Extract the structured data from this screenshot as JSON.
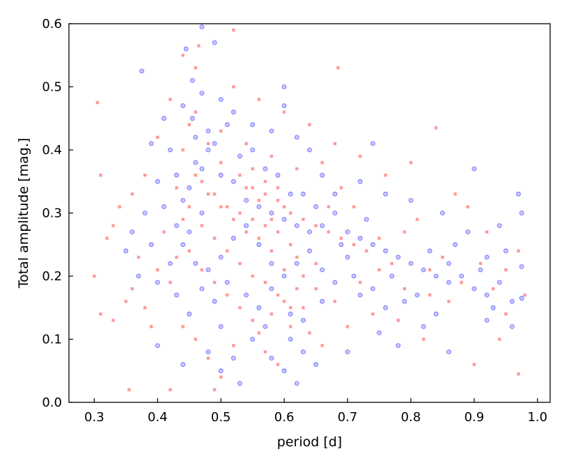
{
  "chart_data": {
    "type": "scatter",
    "title": "",
    "xlabel": "period [d]",
    "ylabel": "Total amplitude [mag.]",
    "xlim": [
      0.26,
      1.02
    ],
    "ylim": [
      0.0,
      0.6
    ],
    "xticks": [
      "0.3",
      "0.4",
      "0.5",
      "0.6",
      "0.7",
      "0.8",
      "0.9",
      "1.0"
    ],
    "yticks": [
      "0.0",
      "0.1",
      "0.2",
      "0.3",
      "0.4",
      "0.5",
      "0.6"
    ],
    "grid": false,
    "legend": "none",
    "series": [
      {
        "marker": "circle",
        "color": "#0000ff",
        "points": [
          [
            0.47,
            0.595
          ],
          [
            0.49,
            0.57
          ],
          [
            0.445,
            0.56
          ],
          [
            0.375,
            0.525
          ],
          [
            0.455,
            0.51
          ],
          [
            0.455,
            0.45
          ],
          [
            0.46,
            0.42
          ],
          [
            0.48,
            0.4
          ],
          [
            0.47,
            0.37
          ],
          [
            0.5,
            0.36
          ],
          [
            0.45,
            0.34
          ],
          [
            0.52,
            0.35
          ],
          [
            0.54,
            0.32
          ],
          [
            0.56,
            0.31
          ],
          [
            0.58,
            0.3
          ],
          [
            0.6,
            0.29
          ],
          [
            0.62,
            0.28
          ],
          [
            0.64,
            0.27
          ],
          [
            0.66,
            0.28
          ],
          [
            0.68,
            0.3
          ],
          [
            0.7,
            0.27
          ],
          [
            0.72,
            0.26
          ],
          [
            0.74,
            0.25
          ],
          [
            0.76,
            0.24
          ],
          [
            0.78,
            0.23
          ],
          [
            0.8,
            0.22
          ],
          [
            0.82,
            0.21
          ],
          [
            0.84,
            0.2
          ],
          [
            0.86,
            0.19
          ],
          [
            0.88,
            0.2
          ],
          [
            0.9,
            0.18
          ],
          [
            0.92,
            0.17
          ],
          [
            0.94,
            0.19
          ],
          [
            0.96,
            0.16
          ],
          [
            0.97,
            0.33
          ],
          [
            0.975,
            0.3
          ],
          [
            0.975,
            0.215
          ],
          [
            0.975,
            0.165
          ],
          [
            0.9,
            0.37
          ],
          [
            0.74,
            0.41
          ],
          [
            0.6,
            0.47
          ],
          [
            0.6,
            0.5
          ],
          [
            0.42,
            0.4
          ],
          [
            0.4,
            0.35
          ],
          [
            0.38,
            0.3
          ],
          [
            0.36,
            0.27
          ],
          [
            0.35,
            0.24
          ],
          [
            0.37,
            0.2
          ],
          [
            0.4,
            0.19
          ],
          [
            0.43,
            0.17
          ],
          [
            0.45,
            0.14
          ],
          [
            0.5,
            0.12
          ],
          [
            0.55,
            0.1
          ],
          [
            0.58,
            0.07
          ],
          [
            0.6,
            0.05
          ],
          [
            0.62,
            0.03
          ],
          [
            0.53,
            0.03
          ],
          [
            0.65,
            0.06
          ],
          [
            0.7,
            0.08
          ],
          [
            0.75,
            0.11
          ],
          [
            0.78,
            0.09
          ],
          [
            0.82,
            0.12
          ],
          [
            0.86,
            0.08
          ],
          [
            0.92,
            0.13
          ],
          [
            0.96,
            0.12
          ],
          [
            0.4,
            0.09
          ],
          [
            0.44,
            0.06
          ],
          [
            0.48,
            0.08
          ],
          [
            0.5,
            0.05
          ],
          [
            0.52,
            0.07
          ],
          [
            0.56,
            0.15
          ],
          [
            0.58,
            0.18
          ],
          [
            0.61,
            0.14
          ],
          [
            0.63,
            0.13
          ],
          [
            0.66,
            0.16
          ],
          [
            0.68,
            0.19
          ],
          [
            0.72,
            0.17
          ],
          [
            0.77,
            0.2
          ],
          [
            0.79,
            0.16
          ],
          [
            0.84,
            0.14
          ],
          [
            0.87,
            0.25
          ],
          [
            0.89,
            0.27
          ],
          [
            0.92,
            0.23
          ],
          [
            0.94,
            0.28
          ],
          [
            0.85,
            0.3
          ],
          [
            0.8,
            0.32
          ],
          [
            0.76,
            0.33
          ],
          [
            0.72,
            0.35
          ],
          [
            0.68,
            0.33
          ],
          [
            0.66,
            0.36
          ],
          [
            0.64,
            0.4
          ],
          [
            0.62,
            0.42
          ],
          [
            0.58,
            0.43
          ],
          [
            0.55,
            0.44
          ],
          [
            0.52,
            0.46
          ],
          [
            0.5,
            0.48
          ],
          [
            0.48,
            0.43
          ],
          [
            0.46,
            0.38
          ],
          [
            0.44,
            0.32
          ],
          [
            0.43,
            0.28
          ],
          [
            0.44,
            0.25
          ],
          [
            0.46,
            0.22
          ],
          [
            0.48,
            0.21
          ],
          [
            0.5,
            0.23
          ],
          [
            0.52,
            0.26
          ],
          [
            0.54,
            0.28
          ],
          [
            0.56,
            0.25
          ],
          [
            0.58,
            0.22
          ],
          [
            0.6,
            0.2
          ],
          [
            0.62,
            0.22
          ],
          [
            0.64,
            0.24
          ],
          [
            0.66,
            0.21
          ],
          [
            0.7,
            0.23
          ],
          [
            0.73,
            0.29
          ],
          [
            0.63,
            0.33
          ],
          [
            0.57,
            0.37
          ],
          [
            0.53,
            0.39
          ],
          [
            0.49,
            0.41
          ],
          [
            0.47,
            0.3
          ],
          [
            0.45,
            0.27
          ],
          [
            0.42,
            0.22
          ],
          [
            0.39,
            0.25
          ],
          [
            0.41,
            0.31
          ],
          [
            0.43,
            0.36
          ],
          [
            0.39,
            0.41
          ],
          [
            0.41,
            0.45
          ],
          [
            0.44,
            0.47
          ],
          [
            0.47,
            0.49
          ],
          [
            0.51,
            0.44
          ],
          [
            0.55,
            0.4
          ],
          [
            0.59,
            0.36
          ],
          [
            0.61,
            0.33
          ],
          [
            0.65,
            0.31
          ],
          [
            0.69,
            0.25
          ],
          [
            0.71,
            0.2
          ],
          [
            0.74,
            0.18
          ],
          [
            0.76,
            0.15
          ],
          [
            0.81,
            0.17
          ],
          [
            0.83,
            0.24
          ],
          [
            0.86,
            0.22
          ],
          [
            0.91,
            0.21
          ],
          [
            0.93,
            0.15
          ],
          [
            0.95,
            0.24
          ],
          [
            0.61,
            0.1
          ],
          [
            0.63,
            0.08
          ],
          [
            0.57,
            0.12
          ],
          [
            0.54,
            0.17
          ],
          [
            0.51,
            0.19
          ],
          [
            0.49,
            0.16
          ],
          [
            0.47,
            0.18
          ]
        ]
      },
      {
        "marker": "square",
        "color": "#ff0000",
        "points": [
          [
            0.52,
            0.59
          ],
          [
            0.465,
            0.565
          ],
          [
            0.44,
            0.55
          ],
          [
            0.46,
            0.53
          ],
          [
            0.685,
            0.53
          ],
          [
            0.305,
            0.475
          ],
          [
            0.52,
            0.5
          ],
          [
            0.56,
            0.48
          ],
          [
            0.45,
            0.44
          ],
          [
            0.48,
            0.41
          ],
          [
            0.5,
            0.38
          ],
          [
            0.53,
            0.36
          ],
          [
            0.55,
            0.34
          ],
          [
            0.57,
            0.33
          ],
          [
            0.59,
            0.32
          ],
          [
            0.61,
            0.3
          ],
          [
            0.63,
            0.29
          ],
          [
            0.65,
            0.28
          ],
          [
            0.67,
            0.27
          ],
          [
            0.69,
            0.26
          ],
          [
            0.71,
            0.25
          ],
          [
            0.73,
            0.24
          ],
          [
            0.75,
            0.26
          ],
          [
            0.77,
            0.22
          ],
          [
            0.79,
            0.27
          ],
          [
            0.81,
            0.29
          ],
          [
            0.83,
            0.21
          ],
          [
            0.85,
            0.23
          ],
          [
            0.87,
            0.33
          ],
          [
            0.89,
            0.31
          ],
          [
            0.91,
            0.22
          ],
          [
            0.93,
            0.18
          ],
          [
            0.95,
            0.21
          ],
          [
            0.97,
            0.24
          ],
          [
            0.98,
            0.17
          ],
          [
            0.84,
            0.435
          ],
          [
            0.8,
            0.38
          ],
          [
            0.76,
            0.36
          ],
          [
            0.72,
            0.39
          ],
          [
            0.68,
            0.41
          ],
          [
            0.64,
            0.44
          ],
          [
            0.6,
            0.46
          ],
          [
            0.42,
            0.48
          ],
          [
            0.4,
            0.42
          ],
          [
            0.38,
            0.36
          ],
          [
            0.36,
            0.33
          ],
          [
            0.34,
            0.31
          ],
          [
            0.33,
            0.28
          ],
          [
            0.32,
            0.26
          ],
          [
            0.31,
            0.36
          ],
          [
            0.3,
            0.2
          ],
          [
            0.31,
            0.14
          ],
          [
            0.33,
            0.13
          ],
          [
            0.36,
            0.18
          ],
          [
            0.38,
            0.15
          ],
          [
            0.4,
            0.21
          ],
          [
            0.42,
            0.19
          ],
          [
            0.44,
            0.12
          ],
          [
            0.46,
            0.1
          ],
          [
            0.48,
            0.07
          ],
          [
            0.5,
            0.04
          ],
          [
            0.49,
            0.02
          ],
          [
            0.42,
            0.02
          ],
          [
            0.355,
            0.02
          ],
          [
            0.52,
            0.09
          ],
          [
            0.56,
            0.11
          ],
          [
            0.58,
            0.14
          ],
          [
            0.6,
            0.16
          ],
          [
            0.62,
            0.18
          ],
          [
            0.64,
            0.11
          ],
          [
            0.66,
            0.09
          ],
          [
            0.7,
            0.12
          ],
          [
            0.74,
            0.14
          ],
          [
            0.78,
            0.13
          ],
          [
            0.82,
            0.1
          ],
          [
            0.86,
            0.16
          ],
          [
            0.9,
            0.06
          ],
          [
            0.94,
            0.1
          ],
          [
            0.97,
            0.045
          ],
          [
            0.47,
            0.35
          ],
          [
            0.49,
            0.33
          ],
          [
            0.51,
            0.31
          ],
          [
            0.53,
            0.3
          ],
          [
            0.55,
            0.29
          ],
          [
            0.57,
            0.28
          ],
          [
            0.59,
            0.27
          ],
          [
            0.61,
            0.25
          ],
          [
            0.62,
            0.23
          ],
          [
            0.6,
            0.21
          ],
          [
            0.58,
            0.24
          ],
          [
            0.56,
            0.26
          ],
          [
            0.54,
            0.27
          ],
          [
            0.52,
            0.29
          ],
          [
            0.5,
            0.31
          ],
          [
            0.48,
            0.33
          ],
          [
            0.46,
            0.36
          ],
          [
            0.45,
            0.31
          ],
          [
            0.47,
            0.28
          ],
          [
            0.49,
            0.26
          ],
          [
            0.51,
            0.24
          ],
          [
            0.53,
            0.22
          ],
          [
            0.55,
            0.2
          ],
          [
            0.57,
            0.19
          ],
          [
            0.59,
            0.17
          ],
          [
            0.61,
            0.15
          ],
          [
            0.63,
            0.2
          ],
          [
            0.65,
            0.22
          ],
          [
            0.67,
            0.31
          ],
          [
            0.69,
            0.34
          ],
          [
            0.71,
            0.31
          ],
          [
            0.66,
            0.38
          ],
          [
            0.62,
            0.37
          ],
          [
            0.58,
            0.39
          ],
          [
            0.54,
            0.41
          ],
          [
            0.5,
            0.43
          ],
          [
            0.46,
            0.46
          ],
          [
            0.44,
            0.4
          ],
          [
            0.43,
            0.34
          ],
          [
            0.44,
            0.29
          ],
          [
            0.45,
            0.24
          ],
          [
            0.47,
            0.21
          ],
          [
            0.49,
            0.19
          ],
          [
            0.51,
            0.17
          ],
          [
            0.53,
            0.15
          ],
          [
            0.55,
            0.13
          ],
          [
            0.57,
            0.08
          ],
          [
            0.59,
            0.06
          ],
          [
            0.61,
            0.12
          ],
          [
            0.63,
            0.15
          ],
          [
            0.65,
            0.18
          ],
          [
            0.68,
            0.16
          ],
          [
            0.72,
            0.19
          ],
          [
            0.75,
            0.21
          ],
          [
            0.79,
            0.18
          ],
          [
            0.83,
            0.17
          ],
          [
            0.88,
            0.19
          ],
          [
            0.92,
            0.27
          ],
          [
            0.95,
            0.14
          ],
          [
            0.39,
            0.12
          ],
          [
            0.37,
            0.23
          ],
          [
            0.35,
            0.16
          ],
          [
            0.41,
            0.27
          ],
          [
            0.43,
            0.23
          ],
          [
            0.55,
            0.37
          ],
          [
            0.57,
            0.35
          ],
          [
            0.59,
            0.34
          ],
          [
            0.6,
            0.31
          ],
          [
            0.58,
            0.29
          ],
          [
            0.56,
            0.32
          ],
          [
            0.54,
            0.34
          ]
        ]
      }
    ]
  }
}
